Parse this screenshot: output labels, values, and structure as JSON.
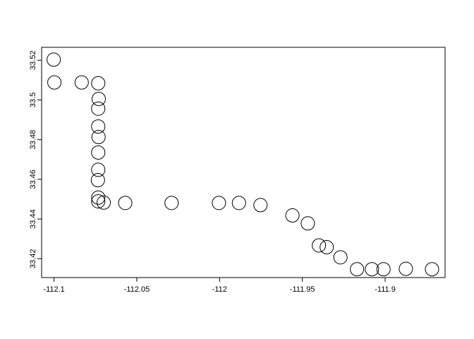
{
  "chart_data": {
    "type": "scatter",
    "title": "",
    "xlabel": "",
    "ylabel": "",
    "xlim": [
      -112.1075,
      -111.8638
    ],
    "ylim": [
      33.4105,
      33.5265
    ],
    "x_ticks": [
      -112.1,
      -112.05,
      -112.0,
      -111.95,
      -111.9
    ],
    "x_tick_labels": [
      "-112.1",
      "-112.05",
      "-112",
      "-111.95",
      "-111.9"
    ],
    "y_ticks": [
      33.42,
      33.44,
      33.46,
      33.48,
      33.5,
      33.52
    ],
    "y_tick_labels": [
      "33.42",
      "33.44",
      "33.46",
      "33.48",
      "33.5",
      "33.52"
    ],
    "marker": "open-circle",
    "marker_color": "#000000",
    "grid": false,
    "legend": "none",
    "points": [
      {
        "x": -112.1002,
        "y": 33.5203
      },
      {
        "x": -112.0998,
        "y": 33.5088
      },
      {
        "x": -112.0833,
        "y": 33.5088
      },
      {
        "x": -112.0733,
        "y": 33.5084
      },
      {
        "x": -112.073,
        "y": 33.5005
      },
      {
        "x": -112.0733,
        "y": 33.4956
      },
      {
        "x": -112.0733,
        "y": 33.4866
      },
      {
        "x": -112.0731,
        "y": 33.4813
      },
      {
        "x": -112.0733,
        "y": 33.4735
      },
      {
        "x": -112.0733,
        "y": 33.4648
      },
      {
        "x": -112.0735,
        "y": 33.4596
      },
      {
        "x": -112.0733,
        "y": 33.4508
      },
      {
        "x": -112.0733,
        "y": 33.4489
      },
      {
        "x": -112.07,
        "y": 33.4483
      },
      {
        "x": -112.057,
        "y": 33.4481
      },
      {
        "x": -112.029,
        "y": 33.4481
      },
      {
        "x": -112.0004,
        "y": 33.4481
      },
      {
        "x": -111.9883,
        "y": 33.4481
      },
      {
        "x": -111.9753,
        "y": 33.447
      },
      {
        "x": -111.956,
        "y": 33.4418
      },
      {
        "x": -111.9467,
        "y": 33.4378
      },
      {
        "x": -111.94,
        "y": 33.4267
      },
      {
        "x": -111.9353,
        "y": 33.4258
      },
      {
        "x": -111.927,
        "y": 33.4207
      },
      {
        "x": -111.917,
        "y": 33.4147
      },
      {
        "x": -111.908,
        "y": 33.4147
      },
      {
        "x": -111.901,
        "y": 33.4147
      },
      {
        "x": -111.8875,
        "y": 33.4149
      },
      {
        "x": -111.8717,
        "y": 33.4147
      }
    ]
  }
}
